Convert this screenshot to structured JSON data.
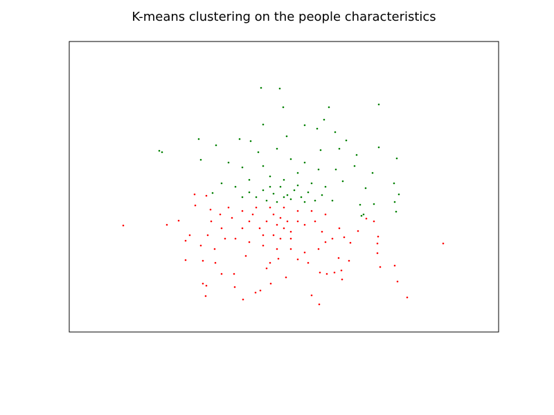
{
  "chart_data": {
    "type": "scatter",
    "title": "K-means clustering on the people characteristics",
    "xlim": [
      0,
      620
    ],
    "ylim": [
      0,
      420
    ],
    "series": [
      {
        "color": "#008000",
        "x": [
          277,
          304,
          309,
          375,
          447,
          280,
          340,
          368,
          358,
          384,
          314,
          400,
          187,
          212,
          130,
          134,
          190,
          246,
          262,
          447,
          473,
          415,
          390,
          363,
          300,
          273,
          230,
          250,
          280,
          320,
          340,
          360,
          385,
          412,
          438,
          469,
          476,
          207,
          220,
          240,
          260,
          290,
          310,
          330,
          350,
          370,
          395,
          428,
          420,
          440,
          470,
          472,
          280,
          295,
          305,
          315,
          325,
          335,
          345,
          355,
          365,
          380,
          270,
          285,
          300,
          320,
          340,
          260,
          250,
          310,
          290,
          330,
          422,
          425
        ],
        "y": [
          353,
          352,
          325,
          325,
          329,
          300,
          299,
          307,
          294,
          289,
          283,
          277,
          279,
          270,
          262,
          260,
          249,
          279,
          276,
          267,
          251,
          256,
          265,
          263,
          265,
          260,
          245,
          238,
          240,
          250,
          245,
          235,
          235,
          240,
          230,
          215,
          199,
          201,
          215,
          210,
          220,
          225,
          220,
          230,
          215,
          210,
          218,
          208,
          184,
          185,
          188,
          174,
          205,
          200,
          210,
          198,
          205,
          195,
          202,
          190,
          198,
          190,
          195,
          190,
          188,
          192,
          188,
          202,
          195,
          195,
          210,
          212,
          168,
          170
        ]
      },
      {
        "color": "#ff0000",
        "x": [
          78,
          141,
          158,
          181,
          198,
          182,
          174,
          168,
          168,
          193,
          193,
          198,
          197,
          211,
          220,
          238,
          239,
          251,
          269,
          276,
          291,
          285,
          302,
          313,
          350,
          361,
          362,
          372,
          383,
          394,
          393,
          404,
          389,
          449,
          470,
          474,
          488,
          540,
          446,
          445,
          445,
          440,
          429,
          417,
          406,
          397,
          390,
          380,
          370,
          360,
          340,
          330,
          320,
          300,
          280,
          260,
          240,
          220,
          205,
          218,
          230,
          250,
          270,
          290,
          310,
          330,
          350,
          370,
          295,
          305,
          315,
          300,
          310,
          285,
          275,
          320,
          330,
          340,
          260,
          250,
          295,
          305,
          320,
          280,
          265,
          355,
          365,
          235,
          225,
          210,
          255,
          290,
          345,
          200,
          190,
          204
        ],
        "y": [
          154,
          155,
          161,
          199,
          197,
          183,
          140,
          132,
          104,
          103,
          70,
          67,
          52,
          100,
          84,
          84,
          65,
          47,
          57,
          60,
          70,
          92,
          106,
          79,
          53,
          40,
          86,
          84,
          86,
          76,
          89,
          103,
          107,
          94,
          96,
          73,
          50,
          128,
          138,
          128,
          114,
          160,
          164,
          146,
          129,
          137,
          150,
          135,
          130,
          120,
          115,
          105,
          120,
          120,
          125,
          130,
          135,
          150,
          160,
          170,
          180,
          175,
          180,
          180,
          180,
          175,
          175,
          170,
          170,
          165,
          160,
          155,
          150,
          160,
          150,
          145,
          160,
          155,
          160,
          150,
          140,
          135,
          135,
          140,
          170,
          160,
          145,
          165,
          135,
          120,
          110,
          100,
          100,
          140,
          125,
          177
        ]
      }
    ]
  }
}
